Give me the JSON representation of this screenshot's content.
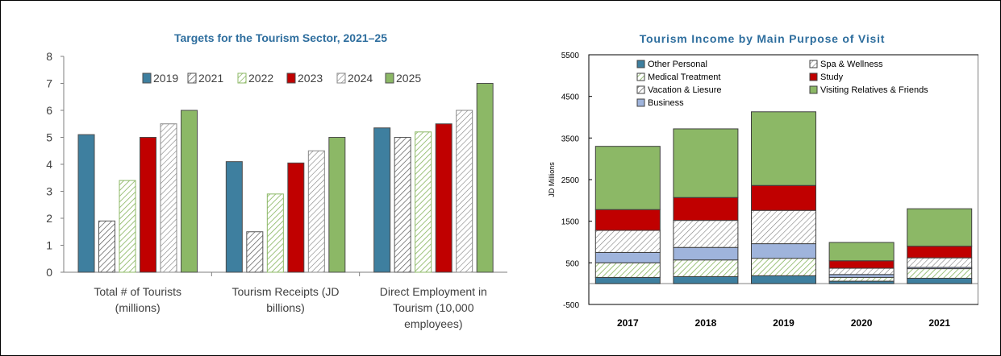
{
  "chart_data": [
    {
      "type": "bar",
      "title": "Targets for the Tourism Sector, 2021–25",
      "categories": [
        [
          "Total # of Tourists",
          "(millions)"
        ],
        [
          "Tourism Receipts (JD",
          "billions)"
        ],
        [
          "Direct Employment in",
          "Tourism (10,000",
          "employees)"
        ]
      ],
      "ylim": [
        0,
        8
      ],
      "yticks": [
        0,
        1,
        2,
        3,
        4,
        5,
        6,
        7,
        8
      ],
      "legend_position": "top-center",
      "gridlines": false,
      "series": [
        {
          "name": "2019",
          "values": [
            5.1,
            4.1,
            5.35
          ],
          "color": "#3e7f9f",
          "pattern": "solid"
        },
        {
          "name": "2021",
          "values": [
            1.9,
            1.5,
            5.0
          ],
          "color": "#555555",
          "pattern": "hatch-dark"
        },
        {
          "name": "2022",
          "values": [
            3.4,
            2.9,
            5.2
          ],
          "color": "#8cb866",
          "pattern": "hatch-green"
        },
        {
          "name": "2023",
          "values": [
            5.0,
            4.05,
            5.5
          ],
          "color": "#c00000",
          "pattern": "solid"
        },
        {
          "name": "2024",
          "values": [
            5.5,
            4.5,
            6.0
          ],
          "color": "#888888",
          "pattern": "hatch-light"
        },
        {
          "name": "2025",
          "values": [
            6.0,
            5.0,
            7.0
          ],
          "color": "#8cb866",
          "pattern": "solid"
        }
      ]
    },
    {
      "type": "bar",
      "stacked": true,
      "title": "Tourism Income by Main Purpose of Visit",
      "categories": [
        "2017",
        "2018",
        "2019",
        "2020",
        "2021"
      ],
      "ylabel": "JD Millions",
      "ylim": [
        -500,
        5500
      ],
      "yticks": [
        -500,
        500,
        1500,
        2500,
        3500,
        4500,
        5500
      ],
      "legend_position": "top-left",
      "series": [
        {
          "name": "Other  Personal",
          "values": [
            150,
            170,
            190,
            60,
            130
          ],
          "color": "#3e7f9f",
          "pattern": "solid"
        },
        {
          "name": "Medical Treatment",
          "values": [
            350,
            400,
            420,
            90,
            230
          ],
          "color": "#8cb866",
          "pattern": "hatch-green"
        },
        {
          "name": "Vacation & Liesure",
          "values": [
            0,
            0,
            0,
            0,
            0
          ],
          "color": "#555555",
          "pattern": "hatch-dark"
        },
        {
          "name": "Business",
          "values": [
            250,
            300,
            350,
            70,
            30
          ],
          "color": "#9fb4dc",
          "pattern": "solid"
        },
        {
          "name": "Spa & Wellness",
          "values": [
            530,
            650,
            800,
            150,
            230
          ],
          "color": "#666666",
          "pattern": "hatch-light"
        },
        {
          "name": "Study",
          "values": [
            500,
            550,
            600,
            180,
            280
          ],
          "color": "#c00000",
          "pattern": "solid"
        },
        {
          "name": "Visiting Relatives & Friends",
          "values": [
            1520,
            1650,
            1770,
            440,
            900
          ],
          "color": "#8cb866",
          "pattern": "solid"
        }
      ]
    }
  ]
}
